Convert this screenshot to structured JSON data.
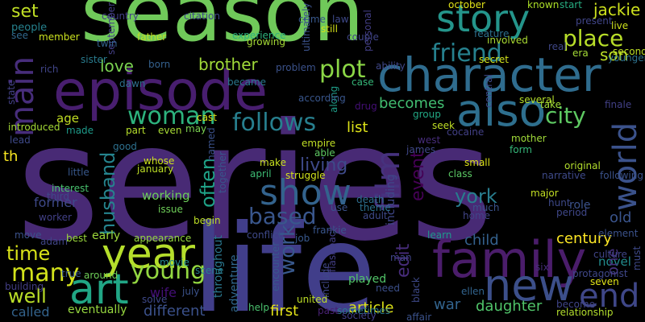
{
  "cloud": {
    "words": [
      {
        "t": "series",
        "c": "#482a75"
      },
      {
        "t": "season",
        "c": "#70c95a"
      },
      {
        "t": "life",
        "c": "#413e8a"
      },
      {
        "t": "episode",
        "c": "#481e6f"
      },
      {
        "t": "character",
        "c": "#2f6c8e"
      },
      {
        "t": "family",
        "c": "#4b1d6b"
      },
      {
        "t": "story",
        "c": "#24958b"
      },
      {
        "t": "also",
        "c": "#2e6f8e"
      },
      {
        "t": "year",
        "c": "#b5de2b"
      },
      {
        "t": "new",
        "c": "#3c4f8a"
      },
      {
        "t": "art",
        "c": "#21a685"
      },
      {
        "t": "show",
        "c": "#33638d"
      },
      {
        "t": "friend",
        "c": "#26818e"
      },
      {
        "t": "place",
        "c": "#b8de29"
      },
      {
        "t": "main",
        "c": "#472d7b"
      },
      {
        "t": "world",
        "c": "#3b528b"
      },
      {
        "t": "film",
        "c": "#46327e"
      },
      {
        "t": "end",
        "c": "#3f4788"
      },
      {
        "t": "many",
        "c": "#d2e21b"
      },
      {
        "t": "young",
        "c": "#93d741"
      },
      {
        "t": "woman",
        "c": "#2db27d"
      },
      {
        "t": "city",
        "c": "#5ec962"
      },
      {
        "t": "plot",
        "c": "#8bd646"
      },
      {
        "t": "follows",
        "c": "#277f8e"
      },
      {
        "t": "time",
        "c": "#d8e219"
      },
      {
        "t": "well",
        "c": "#bade28"
      },
      {
        "t": "husband",
        "c": "#25848e"
      },
      {
        "t": "based",
        "c": "#39568c"
      },
      {
        "t": "work",
        "c": "#38588c"
      },
      {
        "t": "event",
        "c": "#440154"
      },
      {
        "t": "york",
        "c": "#287d8e"
      },
      {
        "t": "list",
        "c": "#dde318"
      },
      {
        "t": "often",
        "c": "#1fa287"
      },
      {
        "t": "living",
        "c": "#3e4a89"
      },
      {
        "t": "jackie",
        "c": "#cde11d"
      },
      {
        "t": "son",
        "c": "#bddf26"
      },
      {
        "t": "set",
        "c": "#c0df25"
      },
      {
        "t": "brother",
        "c": "#a0da39"
      },
      {
        "t": "love",
        "c": "#7ad151"
      },
      {
        "t": "becomes",
        "c": "#42be71"
      },
      {
        "t": "edit",
        "c": "#472c7a"
      },
      {
        "t": "including",
        "c": "#3f4788"
      },
      {
        "t": "century",
        "c": "#fde725"
      },
      {
        "t": "daughter",
        "c": "#50c46a"
      },
      {
        "t": "article",
        "c": "#dde318"
      },
      {
        "t": "first",
        "c": "#e5e419"
      },
      {
        "t": "war",
        "c": "#32648e"
      },
      {
        "t": "child",
        "c": "#34618d"
      },
      {
        "t": "working",
        "c": "#6ccd5a"
      },
      {
        "t": "wife",
        "c": "#440f76"
      },
      {
        "t": "people",
        "c": "#26828e"
      },
      {
        "t": "early",
        "c": "#9dd93b"
      },
      {
        "t": "called",
        "c": "#33638d"
      },
      {
        "t": "different",
        "c": "#3b518b"
      },
      {
        "t": "eventually",
        "c": "#97d83f"
      },
      {
        "t": "age",
        "c": "#c2df23"
      },
      {
        "t": "th",
        "c": "#f8e621"
      },
      {
        "t": "former",
        "c": "#3e4989"
      },
      {
        "t": "old",
        "c": "#3a548c"
      },
      {
        "t": "novel",
        "c": "#228c8d"
      },
      {
        "t": "played",
        "c": "#52c569"
      },
      {
        "t": "adventure",
        "c": "#31688e"
      },
      {
        "t": "throughout",
        "c": "#2a778e"
      },
      {
        "t": "role",
        "c": "#3b528b"
      },
      {
        "t": "one",
        "c": "#46327e"
      },
      {
        "t": "original",
        "c": "#b2dd2d"
      },
      {
        "t": "member",
        "c": "#cae11f"
      },
      {
        "t": "father",
        "c": "#bfdf25"
      },
      {
        "t": "sister",
        "c": "#297b8e"
      },
      {
        "t": "born",
        "c": "#34608d"
      },
      {
        "t": "case",
        "c": "#35b779"
      },
      {
        "t": "several",
        "c": "#b5de2b"
      },
      {
        "t": "take",
        "c": "#a2da37"
      },
      {
        "t": "secret",
        "c": "#d2e21b"
      },
      {
        "t": "involved",
        "c": "#aadc32"
      },
      {
        "t": "live",
        "c": "#cde11d"
      },
      {
        "t": "second",
        "c": "#bddf26"
      },
      {
        "t": "october",
        "c": "#e2e418"
      },
      {
        "t": "known",
        "c": "#ade028"
      },
      {
        "t": "start",
        "c": "#27ad81"
      },
      {
        "t": "era",
        "c": "#a5db36"
      },
      {
        "t": "younger",
        "c": "#2d718e"
      },
      {
        "t": "making",
        "c": "#440154"
      },
      {
        "t": "introduced",
        "c": "#a5db36"
      },
      {
        "t": "made",
        "c": "#1e9b8a"
      },
      {
        "t": "interest",
        "c": "#48c16e"
      },
      {
        "t": "january",
        "c": "#bddf26"
      },
      {
        "t": "whose",
        "c": "#cde11d"
      },
      {
        "t": "april",
        "c": "#3dbc74"
      },
      {
        "t": "struggle",
        "c": "#d0e11c"
      },
      {
        "t": "make",
        "c": "#c8e020"
      },
      {
        "t": "small",
        "c": "#dde318"
      },
      {
        "t": "class",
        "c": "#5ac864"
      },
      {
        "t": "form",
        "c": "#35b779"
      },
      {
        "t": "mother",
        "c": "#a0da39"
      },
      {
        "t": "major",
        "c": "#c2df23"
      },
      {
        "t": "begin",
        "c": "#bddf26"
      },
      {
        "t": "issue",
        "c": "#6ece58"
      },
      {
        "t": "best",
        "c": "#9bd93c"
      },
      {
        "t": "appearance",
        "c": "#95d840"
      },
      {
        "t": "movie",
        "c": "#23898e"
      },
      {
        "t": "scene",
        "c": "#277f8e"
      },
      {
        "t": "around",
        "c": "#6ece58"
      },
      {
        "t": "seven",
        "c": "#e2e418"
      },
      {
        "t": "relationship",
        "c": "#b2dd2d"
      },
      {
        "t": "learn",
        "c": "#1f988b"
      },
      {
        "t": "united",
        "c": "#bddf26"
      },
      {
        "t": "help",
        "c": "#4ac16d"
      },
      {
        "t": "seek",
        "c": "#c0df25"
      },
      {
        "t": "group",
        "c": "#22a884"
      },
      {
        "t": "death",
        "c": "#2e6e8e"
      },
      {
        "t": "theme",
        "c": "#2c718e"
      },
      {
        "t": "need",
        "c": "#3c508b"
      },
      {
        "t": "ellen",
        "c": "#32648e"
      },
      {
        "t": "narrative",
        "c": "#3e4a89"
      },
      {
        "t": "empire",
        "c": "#c0df25"
      },
      {
        "t": "able",
        "c": "#5ec962"
      },
      {
        "t": "cast",
        "c": "#d8e219"
      },
      {
        "t": "even",
        "c": "#a8db34"
      },
      {
        "t": "part",
        "c": "#b5de2b"
      },
      {
        "t": "may",
        "c": "#7ad151"
      },
      {
        "t": "drug",
        "c": "#440f76"
      },
      {
        "t": "along",
        "c": "#1f9e89"
      },
      {
        "t": "problem",
        "c": "#3b528b"
      },
      {
        "t": "became",
        "c": "#2a788e"
      },
      {
        "t": "dawn",
        "c": "#2e6f8e"
      },
      {
        "t": "still",
        "c": "#d5e21a"
      },
      {
        "t": "experience",
        "c": "#2db27d"
      },
      {
        "t": "growing",
        "c": "#a5db36"
      },
      {
        "t": "citation",
        "c": "#3e4989"
      },
      {
        "t": "country",
        "c": "#424086"
      },
      {
        "t": "september",
        "c": "#433e85"
      },
      {
        "t": "see",
        "c": "#31688e"
      },
      {
        "t": "twin",
        "c": "#33638d"
      },
      {
        "t": "crime",
        "c": "#38588c"
      },
      {
        "t": "personal",
        "c": "#433e85"
      },
      {
        "t": "ultimately",
        "c": "#3b528b"
      },
      {
        "t": "feature",
        "c": "#2d708e"
      },
      {
        "t": "real",
        "c": "#3f4788"
      },
      {
        "t": "present",
        "c": "#404588"
      },
      {
        "t": "west",
        "c": "#472d7b"
      },
      {
        "t": "james",
        "c": "#3f4788"
      },
      {
        "t": "rich",
        "c": "#404588"
      },
      {
        "t": "state",
        "c": "#424086"
      },
      {
        "t": "lead",
        "c": "#3e4989"
      },
      {
        "t": "good",
        "c": "#2d708e"
      },
      {
        "t": "named",
        "c": "#3b528b"
      },
      {
        "t": "together",
        "c": "#39568c"
      },
      {
        "t": "sometimes",
        "c": "#2a788e"
      },
      {
        "t": "include",
        "c": "#3f4788"
      },
      {
        "t": "black",
        "c": "#3e4989"
      },
      {
        "t": "society",
        "c": "#433e85"
      },
      {
        "t": "affair",
        "c": "#3b528b"
      },
      {
        "t": "past",
        "c": "#482173"
      },
      {
        "t": "job",
        "c": "#38588c"
      },
      {
        "t": "frankie",
        "c": "#39568c"
      },
      {
        "t": "conflict",
        "c": "#3e4989"
      },
      {
        "t": "move",
        "c": "#3b528b"
      },
      {
        "t": "adam",
        "c": "#404588"
      },
      {
        "t": "third",
        "c": "#3f4788"
      },
      {
        "t": "worker",
        "c": "#424086"
      },
      {
        "t": "true",
        "c": "#39568c"
      },
      {
        "t": "building",
        "c": "#433e85"
      },
      {
        "t": "solve",
        "c": "#3e4989"
      },
      {
        "t": "july",
        "c": "#3b528b"
      },
      {
        "t": "flashback",
        "c": "#433e85"
      },
      {
        "t": "encounter",
        "c": "#38588c"
      },
      {
        "t": "period",
        "c": "#3f4788"
      },
      {
        "t": "culture",
        "c": "#404588"
      },
      {
        "t": "protagonist",
        "c": "#3f4788"
      },
      {
        "t": "element",
        "c": "#3b528b"
      },
      {
        "t": "six",
        "c": "#472d7b"
      },
      {
        "t": "hunt",
        "c": "#3e4989"
      },
      {
        "t": "home",
        "c": "#414487"
      },
      {
        "t": "adult",
        "c": "#3e4989"
      },
      {
        "t": "much",
        "c": "#3b528b"
      },
      {
        "t": "become",
        "c": "#404588"
      },
      {
        "t": "must",
        "c": "#3e4989"
      },
      {
        "t": "finale",
        "c": "#424086"
      },
      {
        "t": "following",
        "c": "#3b528b"
      },
      {
        "t": "cocaine",
        "c": "#424086"
      },
      {
        "t": "central",
        "c": "#3e4989"
      },
      {
        "t": "according",
        "c": "#39568c"
      },
      {
        "t": "ability",
        "c": "#3f4788"
      },
      {
        "t": "couple",
        "c": "#404588"
      },
      {
        "t": "law",
        "c": "#3e4989"
      },
      {
        "t": "little",
        "c": "#38588c"
      },
      {
        "t": "use",
        "c": "#3b528b"
      },
      {
        "t": "man",
        "c": "#404588"
      }
    ]
  }
}
